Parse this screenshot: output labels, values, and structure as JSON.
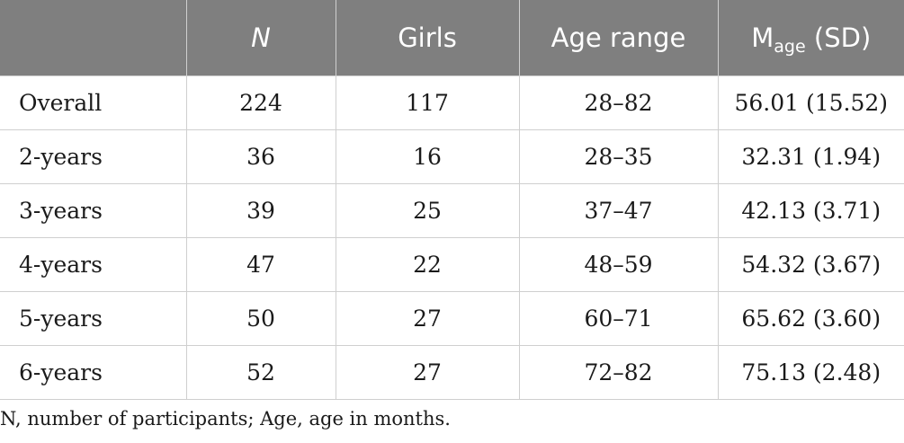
{
  "table": {
    "headers": {
      "col0": "",
      "col1": "N",
      "col2": "Girls",
      "col3": "Age range",
      "col4_main": "M",
      "col4_sub": "age",
      "col4_suffix": " (SD)"
    },
    "rows": [
      {
        "label": "Overall",
        "n": "224",
        "girls": "117",
        "age_range": "28–82",
        "mean_sd": "56.01 (15.52)"
      },
      {
        "label": "2-years",
        "n": "36",
        "girls": "16",
        "age_range": "28–35",
        "mean_sd": "32.31 (1.94)"
      },
      {
        "label": "3-years",
        "n": "39",
        "girls": "25",
        "age_range": "37–47",
        "mean_sd": "42.13 (3.71)"
      },
      {
        "label": "4-years",
        "n": "47",
        "girls": "22",
        "age_range": "48–59",
        "mean_sd": "54.32 (3.67)"
      },
      {
        "label": "5-years",
        "n": "50",
        "girls": "27",
        "age_range": "60–71",
        "mean_sd": "65.62 (3.60)"
      },
      {
        "label": "6-years",
        "n": "52",
        "girls": "27",
        "age_range": "72–82",
        "mean_sd": "75.13 (2.48)"
      }
    ]
  },
  "footnote": "N, number of participants; Age, age in months.",
  "colors": {
    "header_bg": "#7f7f7f",
    "header_text": "#ffffff",
    "grid": "#cfcfcf",
    "body_text": "#1a1a1a"
  }
}
